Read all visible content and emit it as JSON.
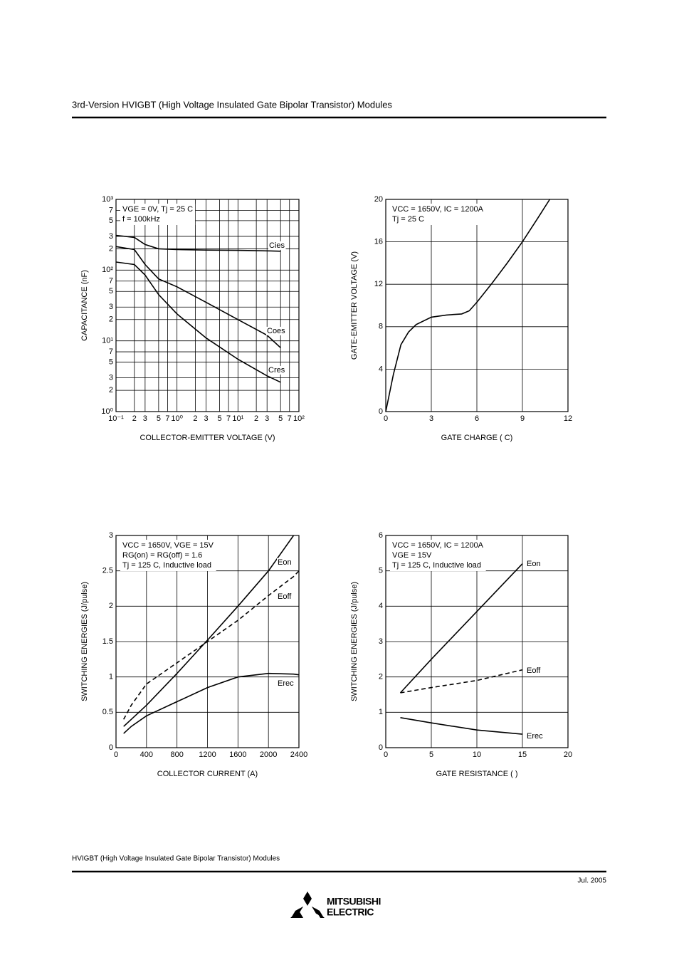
{
  "header": {
    "title": "3rd-Version HVIGBT (High Voltage Insulated Gate Bipolar Transistor) Modules"
  },
  "chart_data": [
    {
      "type": "line",
      "xlog": true,
      "ylog": true,
      "xlabel": "COLLECTOR-EMITTER VOLTAGE (V)",
      "ylabel": "CAPACITANCE (nF)",
      "annotations": [
        "VGE = 0V, Tj = 25 C",
        "f = 100kHz"
      ],
      "x": [
        0.1,
        0.2,
        0.3,
        0.5,
        1,
        3,
        10,
        30,
        50
      ],
      "series": [
        {
          "name": "Cies",
          "color": "#000000",
          "dashed": false,
          "values": [
            310,
            290,
            230,
            200,
            195,
            192,
            190,
            187,
            185
          ]
        },
        {
          "name": "Coes",
          "color": "#000000",
          "dashed": false,
          "values": [
            215,
            195,
            120,
            75,
            58,
            35,
            20,
            12,
            8
          ]
        },
        {
          "name": "Cres",
          "color": "#000000",
          "dashed": false,
          "values": [
            130,
            120,
            85,
            45,
            24,
            11,
            5.5,
            3.2,
            2.6
          ]
        }
      ],
      "xlim": [
        0.1,
        100
      ],
      "ylim": [
        1,
        1000
      ],
      "xticks": [
        {
          "value": 0.1,
          "label": "10⁻¹"
        },
        {
          "value": 0.2,
          "label": "2"
        },
        {
          "value": 0.3,
          "label": "3"
        },
        {
          "value": 0.5,
          "label": "5"
        },
        {
          "value": 0.7,
          "label": "7"
        },
        {
          "value": 1,
          "label": "10⁰"
        },
        2,
        3,
        5,
        7,
        {
          "value": 10,
          "label": "10¹"
        },
        {
          "value": 20,
          "label": "2"
        },
        {
          "value": 30,
          "label": "3"
        },
        {
          "value": 50,
          "label": "5"
        },
        {
          "value": 70,
          "label": "7"
        },
        {
          "value": 100,
          "label": "10²"
        }
      ],
      "yticks": [
        {
          "value": 1,
          "label": "10⁰"
        },
        2,
        3,
        5,
        7,
        {
          "value": 10,
          "label": "10¹"
        },
        {
          "value": 20,
          "label": "2"
        },
        {
          "value": 30,
          "label": "3"
        },
        {
          "value": 50,
          "label": "5"
        },
        {
          "value": 70,
          "label": "7"
        },
        {
          "value": 100,
          "label": "10²"
        },
        {
          "value": 200,
          "label": "2"
        },
        {
          "value": 300,
          "label": "3"
        },
        {
          "value": 500,
          "label": "5"
        },
        {
          "value": 700,
          "label": "7"
        },
        {
          "value": 1000,
          "label": "10³"
        }
      ],
      "grid": true
    },
    {
      "type": "line",
      "xlog": false,
      "ylog": false,
      "xlabel": "GATE CHARGE (  C)",
      "ylabel": "GATE-EMITTER VOLTAGE (V)",
      "annotations": [
        "VCC = 1650V, IC = 1200A",
        "Tj = 25 C"
      ],
      "x": [
        0,
        0.5,
        1,
        1.5,
        2,
        3,
        4,
        5,
        5.5,
        6,
        7,
        8,
        9,
        10,
        10.8
      ],
      "series": [
        {
          "name": null,
          "color": "#000000",
          "dashed": false,
          "values": [
            0,
            3.5,
            6.3,
            7.5,
            8.2,
            8.9,
            9.1,
            9.2,
            9.5,
            10.3,
            12.1,
            14,
            16,
            18.2,
            20
          ]
        }
      ],
      "xlim": [
        0,
        12
      ],
      "ylim": [
        0,
        20
      ],
      "xticks": [
        0,
        3,
        6,
        9,
        12
      ],
      "yticks": [
        0,
        4,
        8,
        12,
        16,
        20
      ],
      "grid": true
    },
    {
      "type": "line",
      "xlog": false,
      "ylog": false,
      "xlabel": "COLLECTOR CURRENT (A)",
      "ylabel": "SWITCHING ENERGIES (J/pulse)",
      "annotations": [
        "VCC = 1650V, VGE =   15V",
        "RG(on) = RG(off) = 1.6",
        "Tj = 125 C, Inductive load"
      ],
      "x": [
        100,
        200,
        400,
        800,
        1200,
        1600,
        2000,
        2330,
        2400
      ],
      "series": [
        {
          "name": "Eon",
          "color": "#000000",
          "dashed": false,
          "values": [
            0.3,
            0.4,
            0.6,
            1.05,
            1.52,
            2.0,
            2.5,
            3.0,
            null
          ]
        },
        {
          "name": "Eoff",
          "color": "#000000",
          "dashed": true,
          "values": [
            0.4,
            0.6,
            0.9,
            1.2,
            1.5,
            1.8,
            2.15,
            2.42,
            2.5
          ]
        },
        {
          "name": "Erec",
          "color": "#000000",
          "dashed": false,
          "values": [
            0.2,
            0.3,
            0.45,
            0.65,
            0.85,
            1.0,
            1.05,
            1.04,
            1.03
          ]
        }
      ],
      "xlim": [
        0,
        2400
      ],
      "ylim": [
        0,
        3
      ],
      "xticks": [
        0,
        400,
        800,
        1200,
        1600,
        2000,
        2400
      ],
      "yticks": [
        0,
        0.5,
        1,
        1.5,
        2,
        2.5,
        3
      ],
      "grid": true
    },
    {
      "type": "line",
      "xlog": false,
      "ylog": false,
      "xlabel": "GATE RESISTANCE (  )",
      "ylabel": "SWITCHING ENERGIES (J/pulse)",
      "annotations": [
        "VCC = 1650V, IC = 1200A",
        "VGE =   15V",
        "Tj = 125 C, Inductive load"
      ],
      "x": [
        1.6,
        5,
        10,
        15
      ],
      "series": [
        {
          "name": "Eon",
          "color": "#000000",
          "dashed": false,
          "values": [
            1.55,
            2.5,
            3.85,
            5.2
          ]
        },
        {
          "name": "Eoff",
          "color": "#000000",
          "dashed": true,
          "values": [
            1.55,
            1.7,
            1.9,
            2.2
          ]
        },
        {
          "name": "Erec",
          "color": "#000000",
          "dashed": false,
          "values": [
            0.85,
            0.7,
            0.5,
            0.38
          ]
        }
      ],
      "xlim": [
        0,
        20
      ],
      "ylim": [
        0,
        6
      ],
      "xticks": [
        0,
        5,
        10,
        15,
        20
      ],
      "yticks": [
        0,
        1,
        2,
        3,
        4,
        5,
        6
      ],
      "grid": true
    }
  ],
  "footer": {
    "text": "HVIGBT (High Voltage Insulated Gate Bipolar Transistor) Modules",
    "date": "Jul. 2005",
    "logo": [
      "MITSUBISHI",
      "ELECTRIC"
    ]
  }
}
